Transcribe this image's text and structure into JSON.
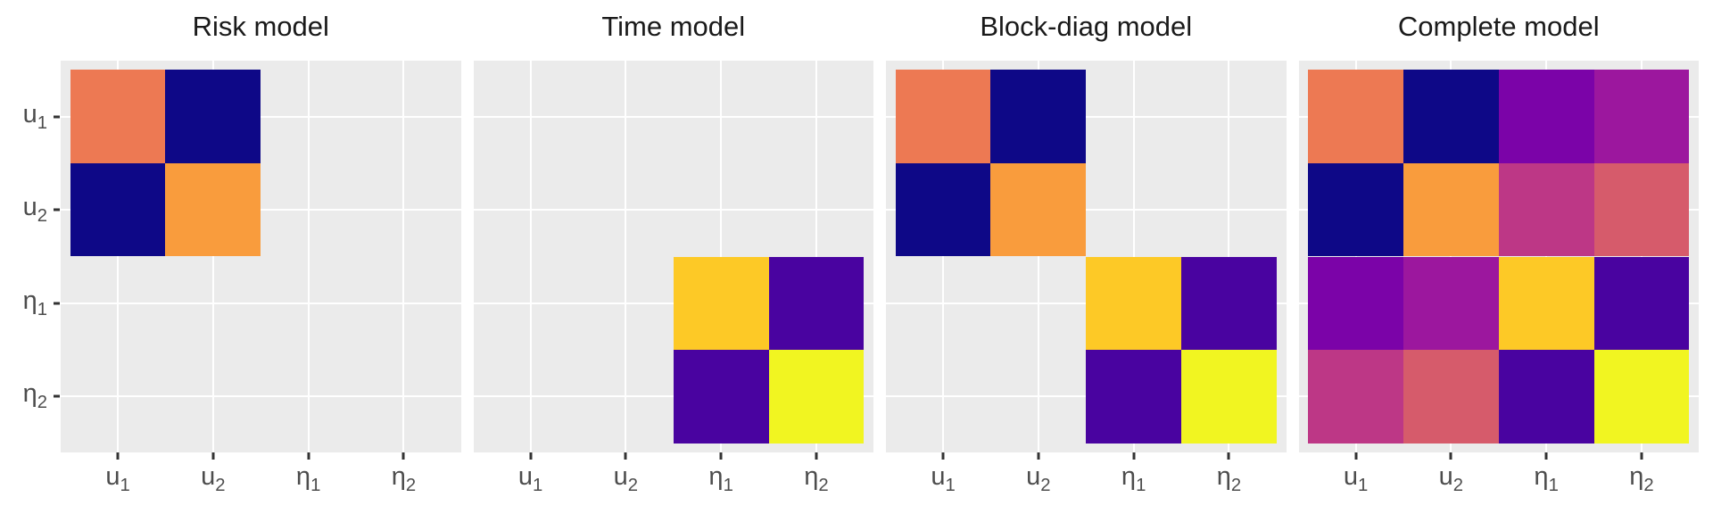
{
  "figure": {
    "background": "#FFFFFF",
    "panel_background": "#EBEBEB",
    "gridline_color": "#FFFFFF",
    "axis_text_color": "#4D4D4D",
    "tick_color": "#333333",
    "title_color": "#1A1A1A"
  },
  "axis": {
    "keys": [
      "u1",
      "u2",
      "eta1",
      "eta2"
    ],
    "x_labels": [
      {
        "base": "u",
        "sub": "1"
      },
      {
        "base": "u",
        "sub": "2"
      },
      {
        "base": "η",
        "sub": "1"
      },
      {
        "base": "η",
        "sub": "2"
      }
    ],
    "y_labels": [
      {
        "base": "u",
        "sub": "1"
      },
      {
        "base": "u",
        "sub": "2"
      },
      {
        "base": "η",
        "sub": "1"
      },
      {
        "base": "η",
        "sub": "2"
      }
    ]
  },
  "chart_data": [
    {
      "type": "heatmap",
      "title": "Risk model",
      "x_categories": [
        "u1",
        "u2",
        "eta1",
        "eta2"
      ],
      "y_categories": [
        "u1",
        "u2",
        "eta1",
        "eta2"
      ],
      "palette": "plasma",
      "legend": false,
      "grid": true,
      "cells": [
        [
          "#ED7953",
          "#0E0887",
          null,
          null
        ],
        [
          "#0E0887",
          "#F99C3D",
          null,
          null
        ],
        [
          null,
          null,
          null,
          null
        ],
        [
          null,
          null,
          null,
          null
        ]
      ]
    },
    {
      "type": "heatmap",
      "title": "Time model",
      "x_categories": [
        "u1",
        "u2",
        "eta1",
        "eta2"
      ],
      "y_categories": [
        "u1",
        "u2",
        "eta1",
        "eta2"
      ],
      "palette": "plasma",
      "legend": false,
      "grid": true,
      "cells": [
        [
          null,
          null,
          null,
          null
        ],
        [
          null,
          null,
          null,
          null
        ],
        [
          null,
          null,
          "#FDC926",
          "#4903A0"
        ],
        [
          null,
          null,
          "#4903A0",
          "#F1F521"
        ]
      ]
    },
    {
      "type": "heatmap",
      "title": "Block-diag model",
      "x_categories": [
        "u1",
        "u2",
        "eta1",
        "eta2"
      ],
      "y_categories": [
        "u1",
        "u2",
        "eta1",
        "eta2"
      ],
      "palette": "plasma",
      "legend": false,
      "grid": true,
      "cells": [
        [
          "#ED7953",
          "#0E0887",
          null,
          null
        ],
        [
          "#0E0887",
          "#F99C3D",
          null,
          null
        ],
        [
          null,
          null,
          "#FDC926",
          "#4903A0"
        ],
        [
          null,
          null,
          "#4903A0",
          "#F1F521"
        ]
      ]
    },
    {
      "type": "heatmap",
      "title": "Complete model",
      "x_categories": [
        "u1",
        "u2",
        "eta1",
        "eta2"
      ],
      "y_categories": [
        "u1",
        "u2",
        "eta1",
        "eta2"
      ],
      "palette": "plasma",
      "legend": false,
      "grid": true,
      "cells": [
        [
          "#ED7953",
          "#0E0887",
          "#7B03A8",
          "#9C179E"
        ],
        [
          "#0E0887",
          "#F99C3D",
          "#BD3786",
          "#D65B6B"
        ],
        [
          "#7B03A8",
          "#9C179E",
          "#FDC926",
          "#4903A0"
        ],
        [
          "#BD3786",
          "#D65B6B",
          "#4903A0",
          "#F1F521"
        ]
      ]
    }
  ]
}
